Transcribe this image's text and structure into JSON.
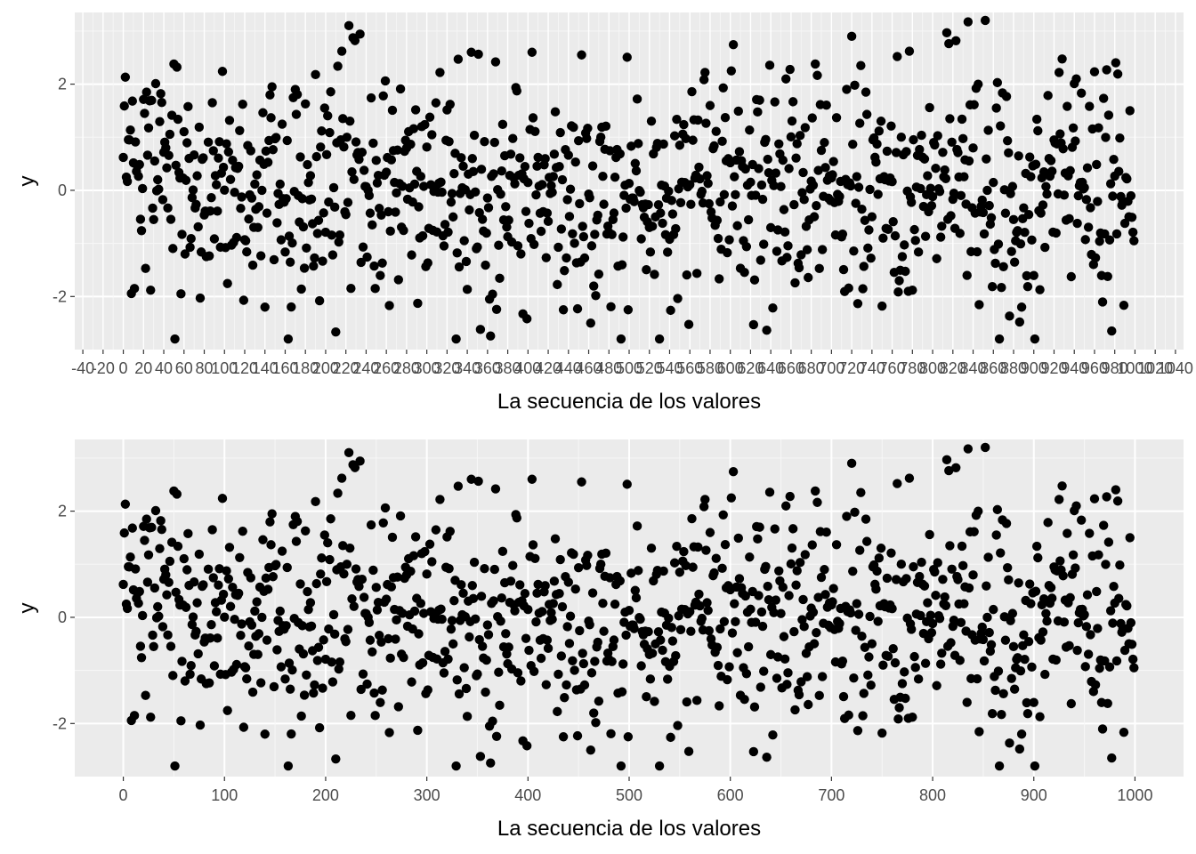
{
  "chart_data": [
    {
      "type": "scatter",
      "panel": "top",
      "xlabel": "La secuencia de los valores",
      "ylabel": "y",
      "xlim": [
        -48,
        1048
      ],
      "ylim": [
        -3.0,
        3.35
      ],
      "y_ticks": [
        -2,
        0,
        2
      ],
      "y_tick_labels": [
        "-2",
        "0",
        "2"
      ],
      "x_tick_step": 20,
      "x_tick_start": -40,
      "x_tick_end": 1040,
      "x_tick_labels": [
        "-40",
        "-20",
        "0",
        "20",
        "40",
        "60",
        "80",
        "100",
        "120",
        "140",
        "160",
        "180",
        "200",
        "220",
        "240",
        "260",
        "280",
        "300",
        "320",
        "340",
        "360",
        "380",
        "400",
        "420",
        "440",
        "460",
        "480",
        "500",
        "520",
        "540",
        "560",
        "580",
        "600",
        "620",
        "640",
        "660",
        "680",
        "700",
        "720",
        "740",
        "760",
        "780",
        "800",
        "820",
        "840",
        "860",
        "880",
        "900",
        "920",
        "940",
        "960",
        "980",
        "1000",
        "1020",
        "1040"
      ],
      "grid": "minor x-grid every 10",
      "point_count": 1000,
      "y_summary": {
        "mean": 0.0,
        "sd": 1.0,
        "min": -2.8,
        "max": 3.2
      },
      "highlight_points": [
        {
          "x": 0,
          "y": 0.62
        },
        {
          "x": 3,
          "y": 0.25
        },
        {
          "x": 6,
          "y": 0.95
        },
        {
          "x": 11,
          "y": -1.85
        },
        {
          "x": 21,
          "y": 1.45
        },
        {
          "x": 23,
          "y": 1.85
        },
        {
          "x": 27,
          "y": -1.88
        },
        {
          "x": 37,
          "y": 1.82
        },
        {
          "x": 50,
          "y": 2.38
        },
        {
          "x": 53,
          "y": 2.32
        },
        {
          "x": 57,
          "y": -1.95
        },
        {
          "x": 76,
          "y": -2.03
        },
        {
          "x": 88,
          "y": 1.65
        },
        {
          "x": 119,
          "y": -2.07
        },
        {
          "x": 140,
          "y": -2.2
        },
        {
          "x": 147,
          "y": 1.95
        },
        {
          "x": 170,
          "y": 1.9
        },
        {
          "x": 190,
          "y": 2.18
        },
        {
          "x": 194,
          "y": -2.08
        },
        {
          "x": 216,
          "y": 2.62
        },
        {
          "x": 229,
          "y": 2.82
        },
        {
          "x": 263,
          "y": -2.17
        },
        {
          "x": 313,
          "y": 2.22
        },
        {
          "x": 331,
          "y": 2.47
        },
        {
          "x": 344,
          "y": 2.6
        },
        {
          "x": 353,
          "y": -2.62
        },
        {
          "x": 362,
          "y": -2.05
        },
        {
          "x": 399,
          "y": -2.42
        },
        {
          "x": 404,
          "y": 2.6
        },
        {
          "x": 435,
          "y": -2.25
        },
        {
          "x": 462,
          "y": -2.5
        },
        {
          "x": 499,
          "y": -2.25
        },
        {
          "x": 575,
          "y": 2.22
        },
        {
          "x": 601,
          "y": 2.25
        },
        {
          "x": 623,
          "y": -2.53
        },
        {
          "x": 684,
          "y": 2.38
        },
        {
          "x": 720,
          "y": 2.9
        },
        {
          "x": 729,
          "y": 2.35
        },
        {
          "x": 750,
          "y": -2.18
        },
        {
          "x": 777,
          "y": 2.62
        },
        {
          "x": 780,
          "y": -1.88
        },
        {
          "x": 852,
          "y": 3.2
        },
        {
          "x": 886,
          "y": -2.48
        },
        {
          "x": 888,
          "y": -2.2
        },
        {
          "x": 901,
          "y": -2.8
        },
        {
          "x": 925,
          "y": 2.22
        },
        {
          "x": 947,
          "y": 1.83
        },
        {
          "x": 972,
          "y": 2.27
        },
        {
          "x": 977,
          "y": 2.2
        },
        {
          "x": 977,
          "y": -2.65
        },
        {
          "x": 995,
          "y": 1.5
        },
        {
          "x": 999,
          "y": -0.95
        }
      ]
    },
    {
      "type": "scatter",
      "panel": "bottom",
      "xlabel": "La secuencia de los valores",
      "ylabel": "y",
      "xlim": [
        -48,
        1048
      ],
      "ylim": [
        -3.0,
        3.35
      ],
      "y_ticks": [
        -2,
        0,
        2
      ],
      "y_tick_labels": [
        "-2",
        "0",
        "2"
      ],
      "x_ticks": [
        0,
        100,
        200,
        300,
        400,
        500,
        600,
        700,
        800,
        900,
        1000
      ],
      "x_tick_labels": [
        "0",
        "100",
        "200",
        "300",
        "400",
        "500",
        "600",
        "700",
        "800",
        "900",
        "1000"
      ],
      "grid": "major every 100, minor every 50",
      "same_data_as": "top"
    }
  ],
  "colors": {
    "panel_bg": "#ebebeb",
    "grid_major": "#ffffff",
    "grid_minor": "#f7f7f7",
    "point": "#000000",
    "tick_text": "#4d4d4d"
  }
}
